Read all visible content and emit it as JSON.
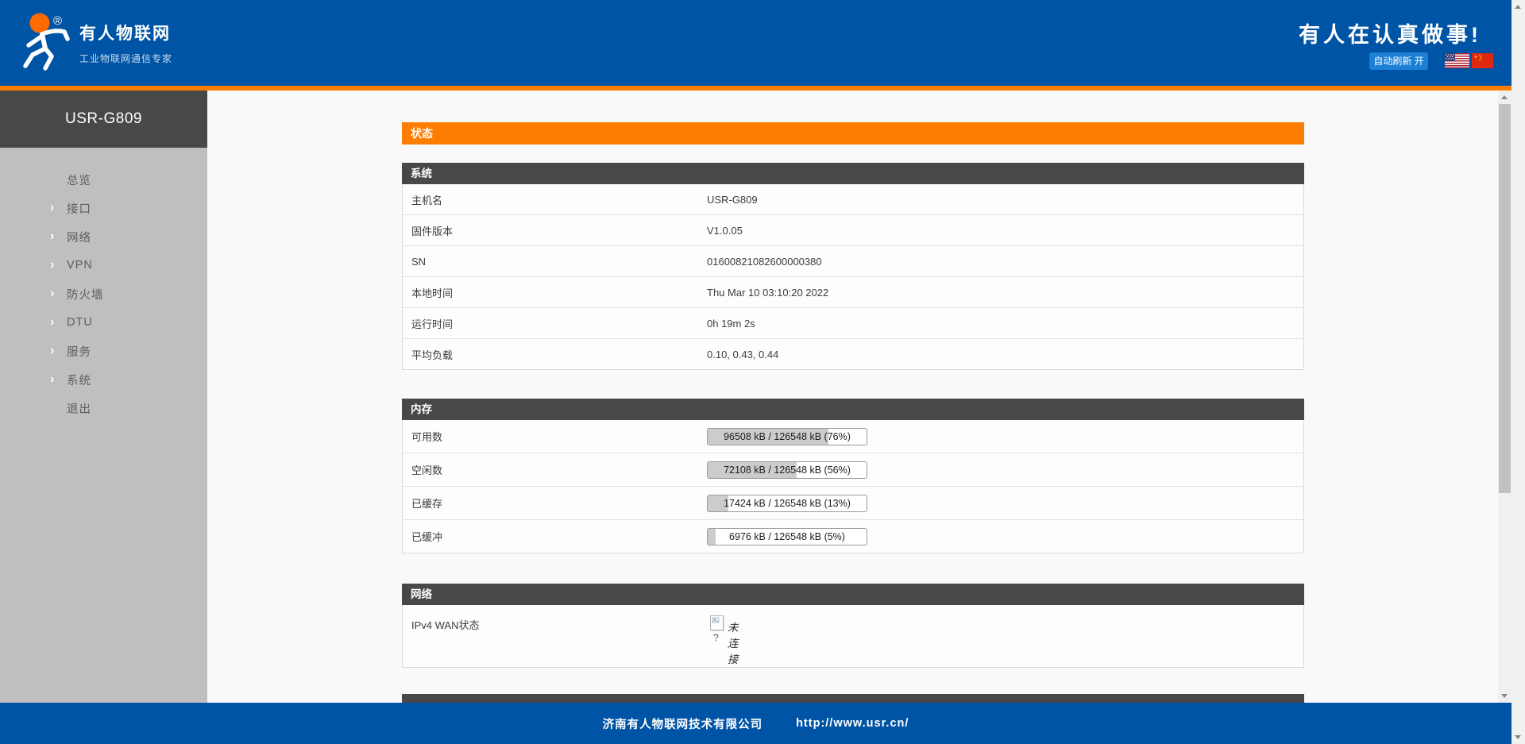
{
  "header": {
    "brand_title": "有人物联网",
    "brand_subtitle": "工业物联网通信专家",
    "registered_mark": "®",
    "slogan": "有人在认真做事!",
    "auto_refresh_label": "自动刷新 开"
  },
  "sidebar": {
    "device_name": "USR-G809",
    "items": [
      {
        "label": "总览",
        "arrow": ""
      },
      {
        "label": "接口",
        "arrow": "›"
      },
      {
        "label": "网络",
        "arrow": "›"
      },
      {
        "label": "VPN",
        "arrow": "›"
      },
      {
        "label": "防火墙",
        "arrow": "›"
      },
      {
        "label": "DTU",
        "arrow": "›"
      },
      {
        "label": "服务",
        "arrow": "›"
      },
      {
        "label": "系统",
        "arrow": "›"
      },
      {
        "label": "退出",
        "arrow": ""
      }
    ]
  },
  "main": {
    "page_title": "状态",
    "system": {
      "title": "系统",
      "rows": [
        {
          "label": "主机名",
          "value": "USR-G809"
        },
        {
          "label": "固件版本",
          "value": "V1.0.05"
        },
        {
          "label": "SN",
          "value": "01600821082600000380"
        },
        {
          "label": "本地时间",
          "value": "Thu Mar 10 03:10:20 2022"
        },
        {
          "label": "运行时间",
          "value": "0h 19m 2s"
        },
        {
          "label": "平均负载",
          "value": "0.10, 0.43, 0.44"
        }
      ]
    },
    "memory": {
      "title": "内存",
      "rows": [
        {
          "label": "可用数",
          "text": "96508 kB / 126548 kB (76%)",
          "percent": 76
        },
        {
          "label": "空闲数",
          "text": "72108 kB / 126548 kB (56%)",
          "percent": 56
        },
        {
          "label": "已缓存",
          "text": "17424 kB / 126548 kB (13%)",
          "percent": 13
        },
        {
          "label": "已缓冲",
          "text": "6976 kB / 126548 kB (5%)",
          "percent": 5
        }
      ]
    },
    "network": {
      "title": "网络",
      "rows": [
        {
          "label": "IPv4 WAN状态",
          "value": "未连接",
          "icon": "broken-image-icon",
          "icon_fallback": "?"
        }
      ]
    }
  },
  "footer": {
    "company": "济南有人物联网技术有限公司",
    "url": "http://www.usr.cn/"
  },
  "colors": {
    "header_blue": "#0054a5",
    "accent_orange": "#fd7d02",
    "section_dark": "#484848",
    "sidebar_gray": "#bfbfbf",
    "refresh_button_blue": "#1b80d6",
    "memory_fill_gray": "#cccccc"
  }
}
